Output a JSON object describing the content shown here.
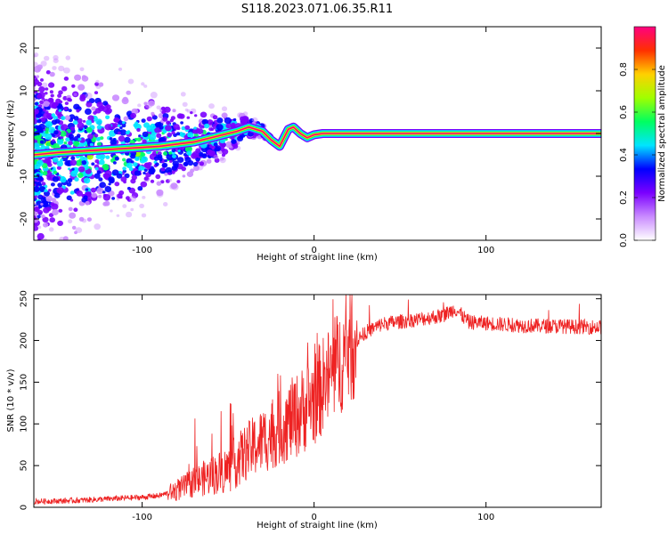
{
  "figure": {
    "title": "S118.2023.071.06.35.R11"
  },
  "chart_data": [
    {
      "type": "heatmap",
      "xlabel": "Height of straight line (km)",
      "ylabel": "Frequency (Hz)",
      "xlim": [
        -163,
        167
      ],
      "ylim": [
        -25,
        25
      ],
      "x_ticks": [
        -100,
        0,
        100
      ],
      "y_ticks": [
        -20,
        -10,
        0,
        10,
        20
      ],
      "grid": false,
      "colorbar": {
        "label": "Normalized spectral amplitude",
        "range": [
          0,
          1
        ],
        "ticks": [
          "0.0",
          "0.2",
          "0.4",
          "0.6",
          "0.8"
        ],
        "tick_values": [
          0.0,
          0.2,
          0.4,
          0.6,
          0.8
        ],
        "colormap": [
          "#ffffff",
          "#c98bff",
          "#7b00ff",
          "#0000ff",
          "#00e5ff",
          "#00ff60",
          "#a0ff00",
          "#ffd000",
          "#ff3000",
          "#ff0080"
        ]
      },
      "ridge": [
        {
          "x": -163,
          "y": -5
        },
        {
          "x": -150,
          "y": -4.5
        },
        {
          "x": -130,
          "y": -4
        },
        {
          "x": -110,
          "y": -3.5
        },
        {
          "x": -90,
          "y": -3
        },
        {
          "x": -70,
          "y": -2
        },
        {
          "x": -55,
          "y": -0.5
        },
        {
          "x": -45,
          "y": 0.5
        },
        {
          "x": -38,
          "y": 1.5
        },
        {
          "x": -30,
          "y": 0.5
        },
        {
          "x": -25,
          "y": -1.5
        },
        {
          "x": -20,
          "y": -3
        },
        {
          "x": -15,
          "y": 1
        },
        {
          "x": -12,
          "y": 1.5
        },
        {
          "x": -8,
          "y": 0
        },
        {
          "x": -4,
          "y": -1
        },
        {
          "x": 0,
          "y": -0.3
        },
        {
          "x": 5,
          "y": 0
        },
        {
          "x": 167,
          "y": 0
        }
      ],
      "band_amplitude": 0.95
    },
    {
      "type": "line",
      "xlabel": "Height of straight line (km)",
      "ylabel": "SNR (10 * v/v)",
      "xlim": [
        -163,
        167
      ],
      "ylim": [
        0,
        255
      ],
      "x_ticks": [
        -100,
        0,
        100
      ],
      "y_ticks": [
        0,
        50,
        100,
        150,
        200,
        250
      ],
      "grid": false,
      "line_color": "#ee2222",
      "trend": [
        {
          "x": -163,
          "y": 7
        },
        {
          "x": -140,
          "y": 8
        },
        {
          "x": -120,
          "y": 10
        },
        {
          "x": -100,
          "y": 12
        },
        {
          "x": -90,
          "y": 14
        },
        {
          "x": -80,
          "y": 20
        },
        {
          "x": -70,
          "y": 30
        },
        {
          "x": -60,
          "y": 38
        },
        {
          "x": -50,
          "y": 45
        },
        {
          "x": -40,
          "y": 65
        },
        {
          "x": -30,
          "y": 80
        },
        {
          "x": -20,
          "y": 95
        },
        {
          "x": -10,
          "y": 110
        },
        {
          "x": 0,
          "y": 130
        },
        {
          "x": 10,
          "y": 160
        },
        {
          "x": 20,
          "y": 190
        },
        {
          "x": 30,
          "y": 210
        },
        {
          "x": 40,
          "y": 220
        },
        {
          "x": 60,
          "y": 225
        },
        {
          "x": 75,
          "y": 230
        },
        {
          "x": 82,
          "y": 238
        },
        {
          "x": 90,
          "y": 222
        },
        {
          "x": 120,
          "y": 218
        },
        {
          "x": 167,
          "y": 216
        }
      ]
    }
  ]
}
